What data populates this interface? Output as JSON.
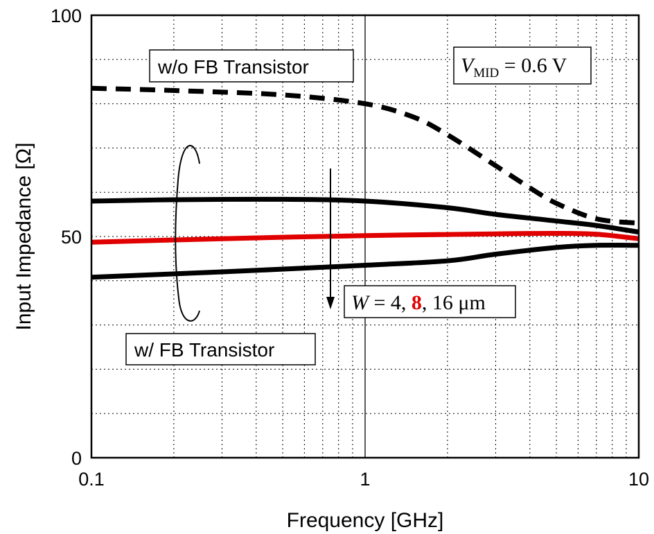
{
  "chart_data": {
    "type": "line",
    "xlabel": "Frequency [GHz]",
    "ylabel": "Input Impedance [Ω]",
    "xscale": "log",
    "xlim": [
      0.1,
      10
    ],
    "ylim": [
      0,
      100
    ],
    "xticks": [
      "0.1",
      "1",
      "10"
    ],
    "yticks": [
      "0",
      "50",
      "100"
    ],
    "grid": true,
    "series": [
      {
        "key": "wo_fb",
        "style": "dashed",
        "color": "#000000",
        "x": [
          0.1,
          0.2,
          0.5,
          1,
          1.5,
          2,
          3,
          4,
          5,
          7,
          10
        ],
        "y": [
          83.5,
          83,
          82,
          80,
          77,
          73,
          66,
          61,
          57.5,
          54,
          53
        ]
      },
      {
        "key": "w_fb_4um",
        "style": "solid",
        "color": "#000000",
        "x": [
          0.1,
          0.2,
          0.5,
          1,
          2,
          3,
          5,
          7,
          10
        ],
        "y": [
          58,
          58.3,
          58.4,
          58,
          56.5,
          55,
          53.5,
          52.5,
          51
        ]
      },
      {
        "key": "w_fb_8um",
        "style": "solid",
        "color": "#e00000",
        "x": [
          0.1,
          0.3,
          1,
          3,
          5,
          7,
          10
        ],
        "y": [
          48.7,
          49.5,
          50.2,
          50.6,
          50.7,
          50.5,
          49.5
        ]
      },
      {
        "key": "w_fb_16um",
        "style": "solid",
        "color": "#000000",
        "x": [
          0.1,
          0.3,
          1,
          2,
          3,
          5,
          7,
          10
        ],
        "y": [
          40.8,
          42,
          43.5,
          44.5,
          46,
          47.5,
          48,
          48
        ]
      }
    ],
    "annotations": {
      "wo_fb_label": "w/o FB Transistor",
      "w_fb_label": "w/ FB Transistor",
      "vmid_var": "V",
      "vmid_sub": "MID",
      "vmid_rest": " = 0.6 V",
      "w_var": "W",
      "w_prefix": " = 4, ",
      "w_highlight": "8",
      "w_suffix": ", 16 μm"
    }
  }
}
